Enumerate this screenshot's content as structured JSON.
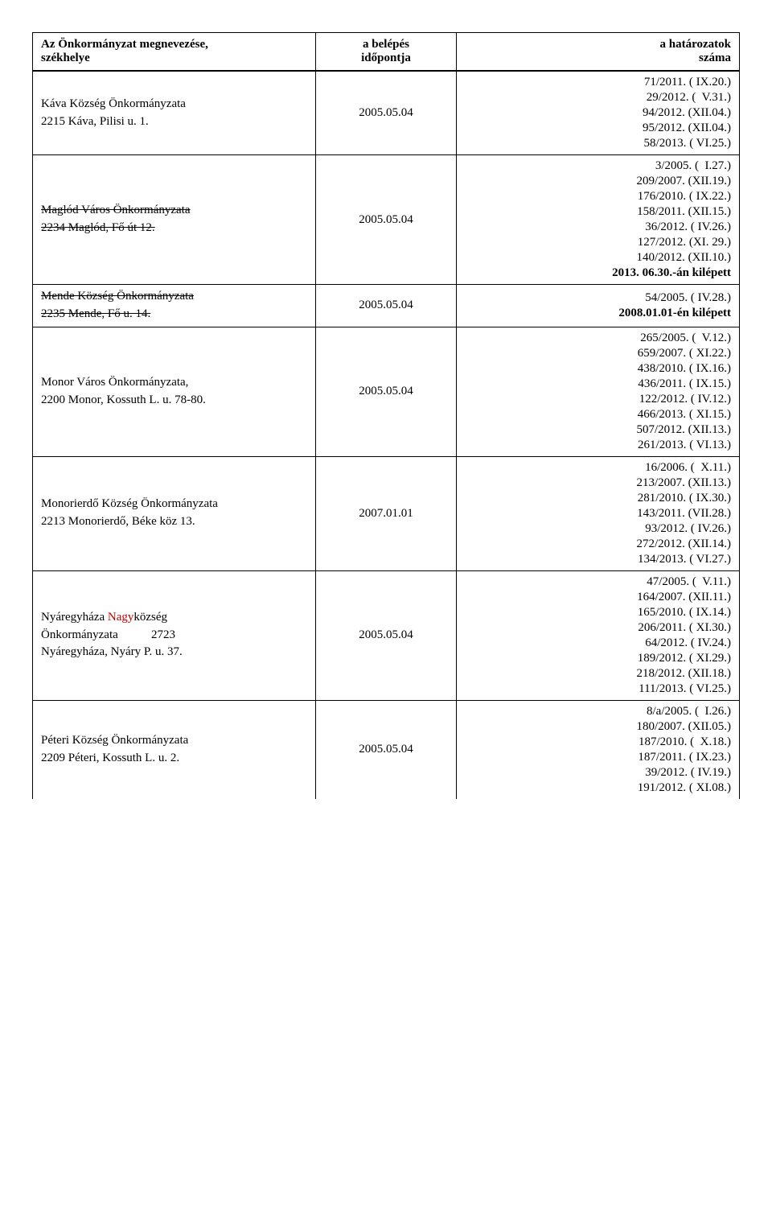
{
  "headers": {
    "name_line1": "Az Önkormányzat megnevezése,",
    "name_line2": "székhelye",
    "date_line1": "a belépés",
    "date_line2": "időpontja",
    "res_line1": "a határozatok",
    "res_line2": "száma"
  },
  "rows": [
    {
      "name_lines": [
        "Káva Község Önkormányzata",
        "2215 Káva, Pilisi u. 1."
      ],
      "strike": false,
      "red_segment": null,
      "date": "2005.05.04",
      "resolutions": [
        " 71/2011. ( IX.20.)",
        " 29/2012. (  V.31.)",
        " 94/2012. (XII.04.)",
        " 95/2012. (XII.04.)",
        " 58/2013. ( VI.25.)"
      ],
      "kilepett": null
    },
    {
      "name_lines": [
        "Maglód Város Önkormányzata",
        "2234 Maglód, Fő út 12."
      ],
      "strike": true,
      "red_segment": null,
      "date": "2005.05.04",
      "resolutions": [
        "  3/2005. (  I.27.)",
        "209/2007. (XII.19.)",
        "176/2010. ( IX.22.)",
        "158/2011. (XII.15.)",
        " 36/2012. ( IV.26.)",
        "127/2012. (XI. 29.)",
        "140/2012. (XII.10.)"
      ],
      "kilepett": "2013. 06.30.-án kilépett"
    },
    {
      "name_lines": [
        "Mende Község Önkormányzata",
        "2235 Mende, Fő u. 14."
      ],
      "strike": true,
      "red_segment": null,
      "date": "2005.05.04",
      "resolutions": [
        " 54/2005. ( IV.28.)"
      ],
      "kilepett": "2008.01.01-én kilépett"
    },
    {
      "name_lines": [
        "Monor Város Önkormányzata,",
        "2200 Monor, Kossuth L. u. 78-80."
      ],
      "strike": false,
      "red_segment": null,
      "date": "2005.05.04",
      "resolutions": [
        "265/2005. (  V.12.)",
        "659/2007. ( XI.22.)",
        "438/2010. ( IX.16.)",
        "436/2011. ( IX.15.)",
        "122/2012. ( IV.12.)",
        "466/2013. ( XI.15.)",
        "507/2012. (XII.13.)",
        "261/2013. ( VI.13.)"
      ],
      "kilepett": null
    },
    {
      "name_lines": [
        "Monorierdő Község Önkormányzata",
        "2213 Monorierdő, Béke köz 13."
      ],
      "strike": false,
      "red_segment": null,
      "date": "2007.01.01",
      "resolutions": [
        " 16/2006. (  X.11.)",
        "213/2007. (XII.13.)",
        "281/2010. ( IX.30.)",
        "143/2011. (VII.28.)",
        " 93/2012. ( IV.26.)",
        "272/2012. (XII.14.)",
        "134/2013. ( VI.27.)"
      ],
      "kilepett": null
    },
    {
      "name_lines_special": true,
      "name_line1_pre": "Nyáregyháza ",
      "name_line1_red": "Nagy",
      "name_line1_post": "község",
      "name_line2": "Önkormányzata           2723",
      "name_line3": "Nyáregyháza, Nyáry P. u. 37.",
      "date": "2005.05.04",
      "resolutions": [
        " 47/2005. (  V.11.)",
        "164/2007. (XII.11.)",
        "165/2010. ( IX.14.)",
        "206/2011. ( XI.30.)",
        " 64/2012. ( IV.24.)",
        "189/2012. ( XI.29.)",
        "218/2012. (XII.18.)",
        "111/2013. ( VI.25.)"
      ],
      "kilepett": null
    },
    {
      "name_lines": [
        "Péteri Község Önkormányzata",
        "2209 Péteri, Kossuth L. u. 2."
      ],
      "strike": false,
      "red_segment": null,
      "date": "2005.05.04",
      "resolutions": [
        "8/a/2005. (  I.26.)",
        "180/2007. (XII.05.)",
        "187/2010. (  X.18.)",
        "187/2011. ( IX.23.)",
        " 39/2012. ( IV.19.)",
        "191/2012. ( XI.08.)"
      ],
      "kilepett": null,
      "last": true
    }
  ]
}
